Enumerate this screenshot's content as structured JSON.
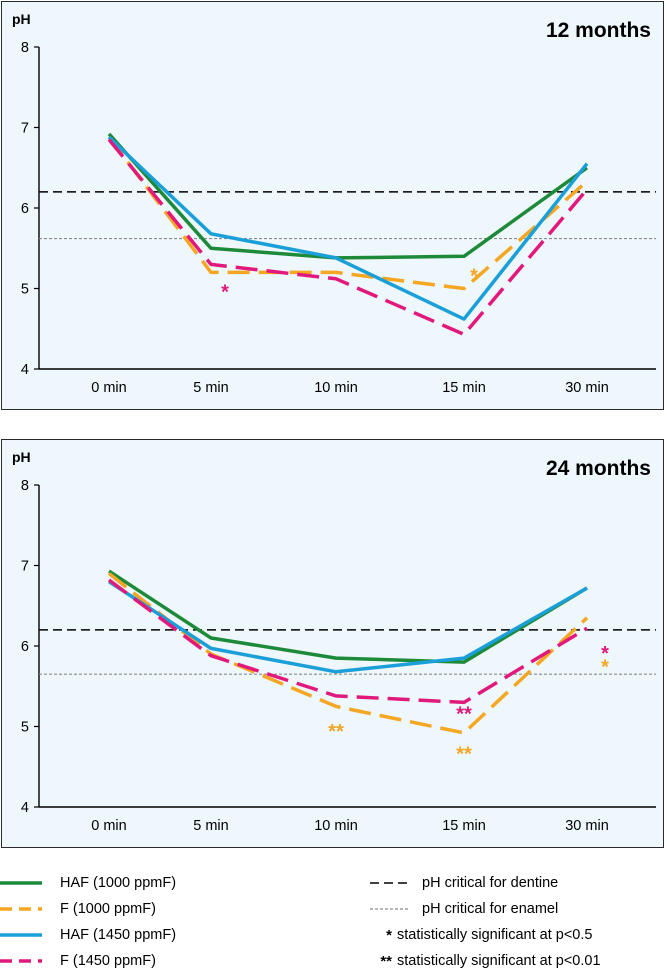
{
  "chart_data": [
    {
      "type": "line",
      "title": "12 months",
      "ylabel": "pH",
      "xlabel": "",
      "categories": [
        "0 min",
        "5 min",
        "10 min",
        "15 min",
        "30 min"
      ],
      "ylim": [
        4,
        8
      ],
      "yticks": [
        "4",
        "5",
        "6",
        "7",
        "8"
      ],
      "series": [
        {
          "name": "HAF (1000 ppmF)",
          "color": "#1d8a3a",
          "dash": "solid",
          "values": [
            6.92,
            5.5,
            5.38,
            5.4,
            6.5
          ]
        },
        {
          "name": "F (1000 ppmF)",
          "color": "#f5a623",
          "dash": "dashed",
          "values": [
            6.88,
            5.2,
            5.2,
            5.0,
            6.33
          ]
        },
        {
          "name": "HAF (1450 ppmF)",
          "color": "#1b9fd8",
          "dash": "solid",
          "values": [
            6.88,
            5.68,
            5.38,
            4.62,
            6.55
          ]
        },
        {
          "name": "F (1450 ppmF)",
          "color": "#e2197c",
          "dash": "dashed",
          "values": [
            6.85,
            5.3,
            5.12,
            4.43,
            6.23
          ]
        }
      ],
      "reference_lines": [
        {
          "name": "pH critical for dentine",
          "value": 6.2,
          "color": "#000000"
        },
        {
          "name": "pH critical for enamel",
          "value": 5.62,
          "color": "#8a8a8a"
        }
      ],
      "annotations": [
        {
          "text": "*",
          "series": "F (1450 ppmF)",
          "x": "5 min",
          "y": 5.0,
          "color": "#e2197c"
        },
        {
          "text": "*",
          "series": "F (1000 ppmF)",
          "x": "15 min",
          "y": 5.2,
          "color": "#f5a623"
        }
      ]
    },
    {
      "type": "line",
      "title": "24 months",
      "ylabel": "pH",
      "xlabel": "",
      "categories": [
        "0 min",
        "5 min",
        "10 min",
        "15 min",
        "30 min"
      ],
      "ylim": [
        4,
        8
      ],
      "yticks": [
        "4",
        "5",
        "6",
        "7",
        "8"
      ],
      "series": [
        {
          "name": "HAF (1000 ppmF)",
          "color": "#1d8a3a",
          "dash": "solid",
          "values": [
            6.93,
            6.1,
            5.85,
            5.8,
            6.72
          ]
        },
        {
          "name": "F (1000 ppmF)",
          "color": "#f5a623",
          "dash": "dashed",
          "values": [
            6.9,
            5.9,
            5.25,
            4.92,
            6.35
          ]
        },
        {
          "name": "HAF (1450 ppmF)",
          "color": "#1b9fd8",
          "dash": "solid",
          "values": [
            6.8,
            5.97,
            5.68,
            5.85,
            6.72
          ]
        },
        {
          "name": "F (1450 ppmF)",
          "color": "#e2197c",
          "dash": "dashed",
          "values": [
            6.82,
            5.88,
            5.38,
            5.3,
            6.22
          ]
        }
      ],
      "reference_lines": [
        {
          "name": "pH critical for dentine",
          "value": 6.2,
          "color": "#000000"
        },
        {
          "name": "pH critical for enamel",
          "value": 5.65,
          "color": "#8a8a8a"
        }
      ],
      "annotations": [
        {
          "text": "**",
          "series": "F (1000 ppmF)",
          "x": "10 min",
          "y": 4.98,
          "color": "#f5a623"
        },
        {
          "text": "**",
          "series": "F (1450 ppmF)",
          "x": "15 min",
          "y": 5.2,
          "color": "#e2197c"
        },
        {
          "text": "**",
          "series": "F (1000 ppmF)",
          "x": "15 min",
          "y": 4.7,
          "color": "#f5a623"
        },
        {
          "text": "*",
          "series": "F (1450 ppmF)",
          "x": "30 min",
          "y": 5.95,
          "color": "#e2197c"
        },
        {
          "text": "*",
          "series": "F (1000 ppmF)",
          "x": "30 min",
          "y": 5.78,
          "color": "#f5a623"
        }
      ]
    }
  ],
  "legend": {
    "series": [
      {
        "label": "HAF (1000 ppmF)",
        "color": "#1d8a3a",
        "dash": "solid"
      },
      {
        "label": "F (1000 ppmF)",
        "color": "#f5a623",
        "dash": "dashed"
      },
      {
        "label": "HAF (1450 ppmF)",
        "color": "#1b9fd8",
        "dash": "solid"
      },
      {
        "label": "F (1450 ppmF)",
        "color": "#e2197c",
        "dash": "dashed"
      }
    ],
    "reference": [
      {
        "label": "pH critical for dentine",
        "color": "#000000"
      },
      {
        "label": "pH critical for enamel",
        "color": "#8a8a8a"
      }
    ],
    "significance": [
      {
        "mark": "*",
        "label": "statistically significant at p<0.5"
      },
      {
        "mark": "**",
        "label": "statistically significant at p<0.01"
      }
    ]
  }
}
